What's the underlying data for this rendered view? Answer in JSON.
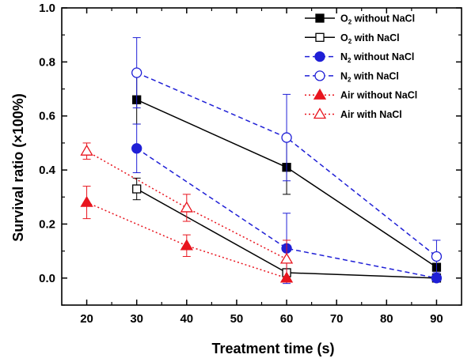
{
  "chart_data": {
    "type": "line",
    "xlabel": "Treatment time (s)",
    "ylabel": "Survival ratio (×100%)",
    "xlim": [
      15,
      95
    ],
    "ylim": [
      -0.1,
      1.0
    ],
    "xticks": [
      "20",
      "30",
      "40",
      "50",
      "60",
      "70",
      "80",
      "90"
    ],
    "yticks": [
      "0.0",
      "0.2",
      "0.4",
      "0.6",
      "0.8",
      "1.0"
    ],
    "legend_position": "top-right",
    "grid": false,
    "series": [
      {
        "name": "O2 without NaCl",
        "label_main": "O",
        "label_sub": "2",
        "label_rest": " without NaCl",
        "color": "#000000",
        "line_style": "solid",
        "marker": "square",
        "filled": true,
        "x": [
          30,
          60,
          90
        ],
        "y": [
          0.66,
          0.41,
          0.04
        ],
        "err": [
          0.09,
          0.1,
          0
        ]
      },
      {
        "name": "O2 with NaCl",
        "label_main": "O",
        "label_sub": "2",
        "label_rest": " with NaCl",
        "color": "#000000",
        "line_style": "solid",
        "marker": "square",
        "filled": false,
        "x": [
          30,
          60,
          90
        ],
        "y": [
          0.33,
          0.02,
          0.0
        ],
        "err": [
          0.04,
          0,
          0
        ]
      },
      {
        "name": "N2 without NaCl",
        "label_main": "N",
        "label_sub": "2",
        "label_rest": " without NaCl",
        "color": "#1f1fd6",
        "line_style": "dashed",
        "marker": "circle",
        "filled": true,
        "x": [
          30,
          60,
          90
        ],
        "y": [
          0.48,
          0.11,
          0.0
        ],
        "err": [
          0.09,
          0.13,
          0
        ]
      },
      {
        "name": "N2 with NaCl",
        "label_main": "N",
        "label_sub": "2",
        "label_rest": " with NaCl",
        "color": "#1f1fd6",
        "line_style": "dashed",
        "marker": "circle",
        "filled": false,
        "x": [
          30,
          60,
          90
        ],
        "y": [
          0.76,
          0.52,
          0.08
        ],
        "err": [
          0.13,
          0.16,
          0.06
        ]
      },
      {
        "name": "Air without NaCl",
        "label_main": "Air without NaCl",
        "label_sub": "",
        "label_rest": "",
        "color": "#e8141e",
        "line_style": "dotted",
        "marker": "triangle",
        "filled": true,
        "x": [
          20,
          40,
          60
        ],
        "y": [
          0.28,
          0.12,
          0.0
        ],
        "err": [
          0.06,
          0.04,
          0
        ]
      },
      {
        "name": "Air with NaCl",
        "label_main": "Air with NaCl",
        "label_sub": "",
        "label_rest": "",
        "color": "#e8141e",
        "line_style": "dotted",
        "marker": "triangle",
        "filled": false,
        "x": [
          20,
          40,
          60
        ],
        "y": [
          0.47,
          0.26,
          0.07
        ],
        "err": [
          0.03,
          0.05,
          0.07
        ]
      }
    ]
  }
}
